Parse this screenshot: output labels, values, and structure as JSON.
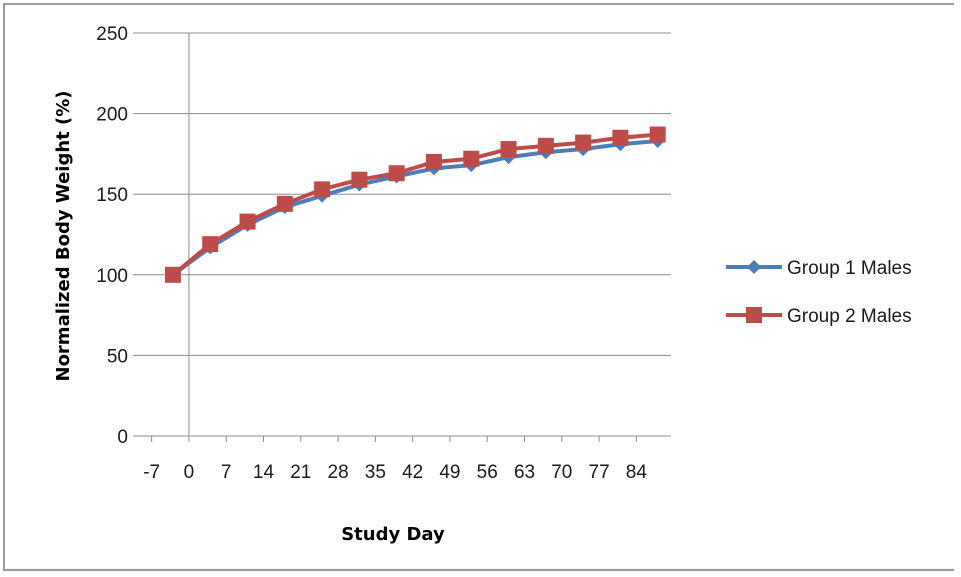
{
  "chart_data": {
    "type": "line",
    "title": "",
    "xlabel": "Study Day",
    "ylabel": "Normalized Body Weight (%)",
    "ylim": [
      0,
      250
    ],
    "yticks": [
      "0",
      "50",
      "100",
      "150",
      "200",
      "250"
    ],
    "xticks": [
      "-7",
      "0",
      "7",
      "14",
      "21",
      "28",
      "35",
      "42",
      "49",
      "56",
      "63",
      "70",
      "77",
      "84"
    ],
    "grid": "horizontal",
    "legend_position": "right",
    "x": [
      -3,
      4,
      11,
      18,
      25,
      32,
      39,
      46,
      53,
      60,
      67,
      74,
      81,
      88
    ],
    "series": [
      {
        "name": "Group 1 Males",
        "marker": "diamond",
        "color": "#4a7ebb",
        "values": [
          100,
          117,
          131,
          142,
          149,
          156,
          161,
          166,
          168,
          173,
          176,
          178,
          181,
          183
        ]
      },
      {
        "name": "Group 2 Males",
        "marker": "square",
        "color": "#be4b48",
        "values": [
          100,
          119,
          133,
          144,
          153,
          159,
          163,
          170,
          172,
          178,
          180,
          182,
          185,
          187
        ]
      }
    ]
  }
}
